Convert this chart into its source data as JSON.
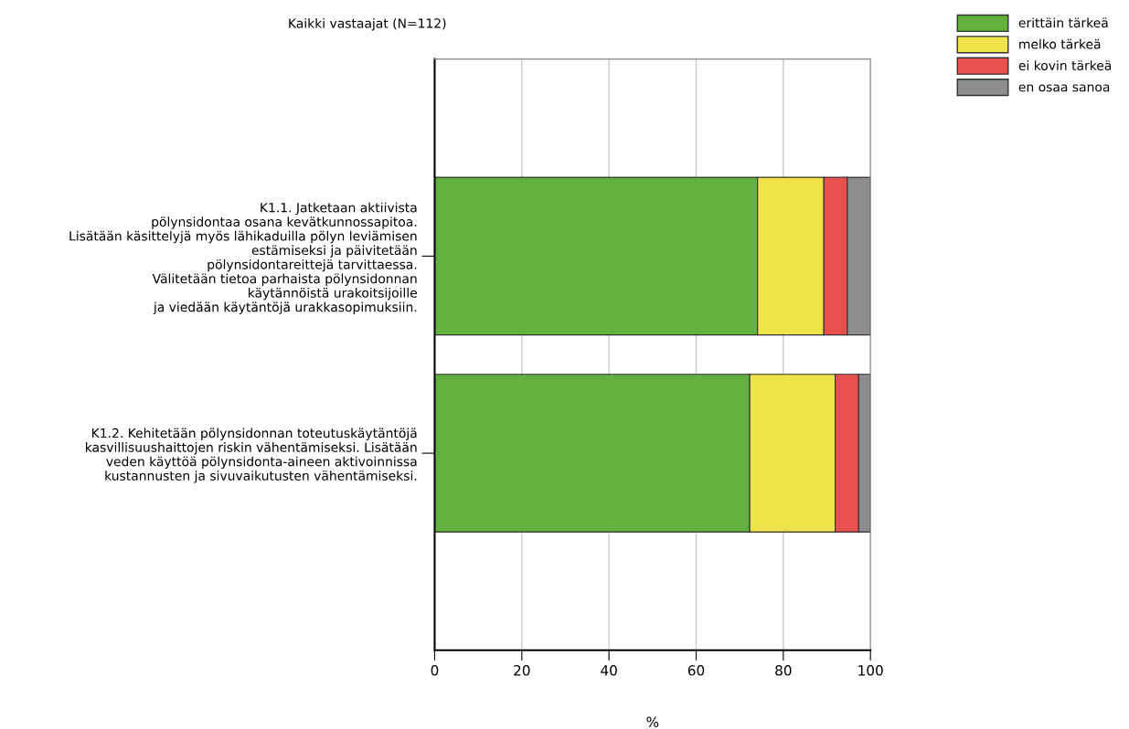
{
  "chart_data": {
    "type": "bar",
    "orientation": "horizontal",
    "stacked": true,
    "title": "Kaikki vastaajat (N=112)",
    "xlabel": "%",
    "categories": [
      "K1.1. Jatketaan aktiivista\npölynsidontaa osana kevätkunnossapitoa.\nLisätään käsittelyjä myös lähikaduilla pölyn leviämisen\nestämiseksi ja päivitetään\npölynsidontareittejä tarvittaessa.\nVälitetään tietoa parhaista pölynsidonnan\nkäytännöistä urakoitsijoille\nja viedään käytäntöjä urakkasopimuksiin.",
      "K1.2. Kehitetään pölynsidonnan toteutuskäytäntöjä\nkasvillisuushaittojen riskin vähentämiseksi. Lisätään\nveden käyttöä pölynsidonta-aineen aktivoinnissa\nkustannusten ja sivuvaikutusten vähentämiseksi."
    ],
    "series": [
      {
        "name": "erittäin tärkeä",
        "color": "#62b03e",
        "values": [
          74.1,
          72.3
        ]
      },
      {
        "name": "melko tärkeä",
        "color": "#f0e24a",
        "values": [
          15.2,
          19.6
        ]
      },
      {
        "name": "ei kovin tärkeä",
        "color": "#e8504e",
        "values": [
          5.4,
          5.4
        ]
      },
      {
        "name": "en osaa sanoa",
        "color": "#8c8c8c",
        "values": [
          5.3,
          2.7
        ]
      }
    ],
    "xlim": [
      0,
      100
    ],
    "xticks": [
      0,
      20,
      40,
      60,
      80,
      100
    ],
    "grid": "x",
    "legend": "top right"
  }
}
